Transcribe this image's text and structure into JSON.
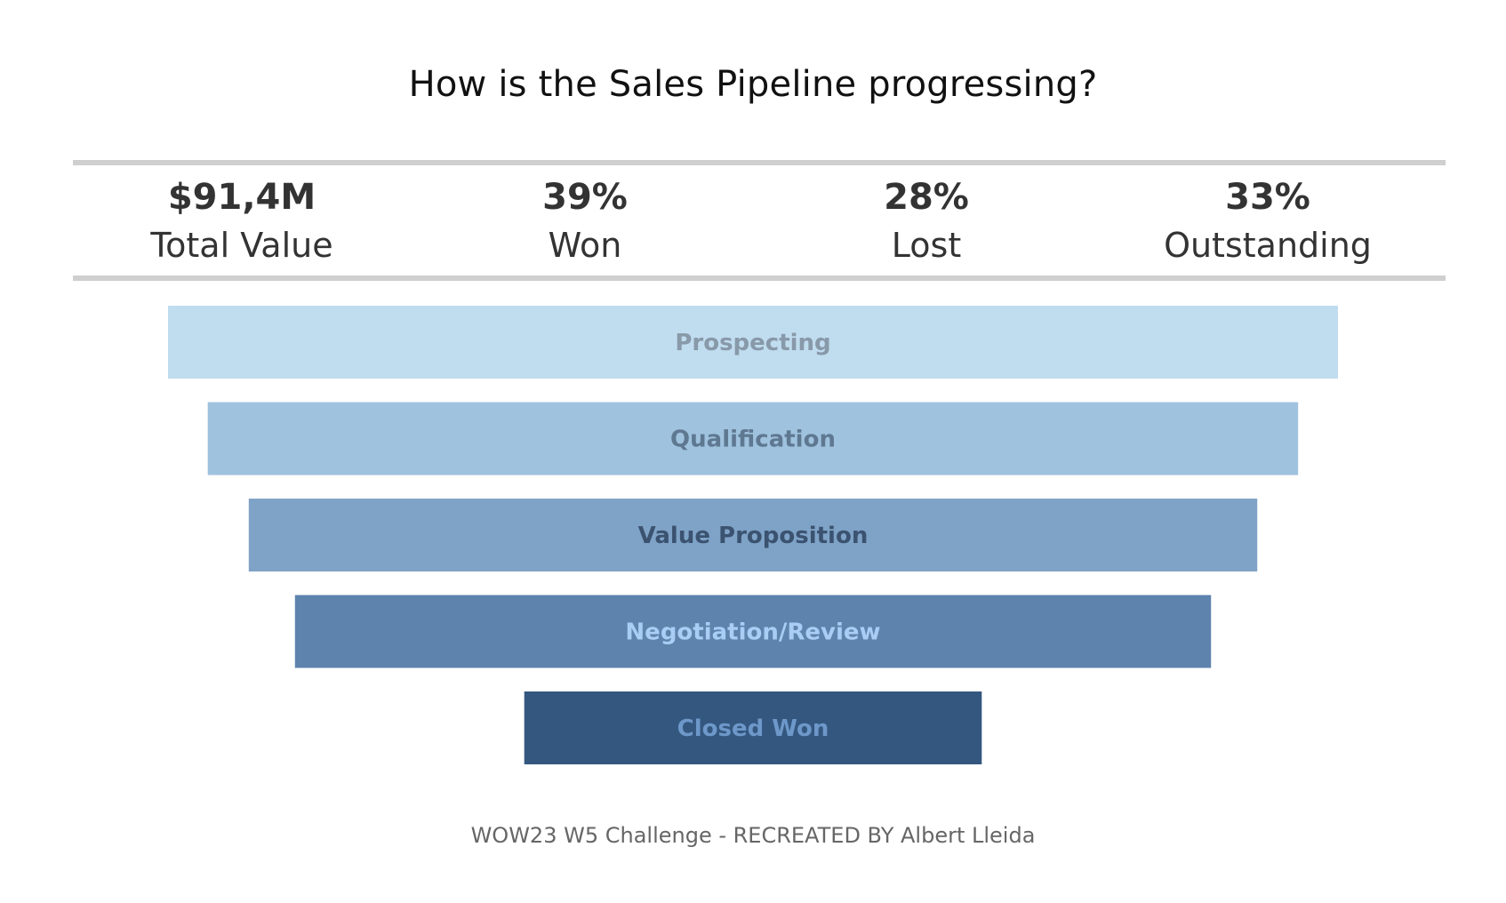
{
  "title": "How is the Sales Pipeline progressing?",
  "kpis": [
    {
      "value": "$91,4M",
      "label": "Total Value"
    },
    {
      "value": "39%",
      "label": "Won"
    },
    {
      "value": "28%",
      "label": "Lost"
    },
    {
      "value": "33%",
      "label": "Outstanding"
    }
  ],
  "chart_data": {
    "type": "bar",
    "subtype": "funnel",
    "title": "How is the Sales Pipeline progressing?",
    "categories": [
      "Prospecting",
      "Qualification",
      "Value Proposition",
      "Negotiation/Review",
      "Closed Won"
    ],
    "values": [
      100,
      93.2,
      86.2,
      78.3,
      39.1
    ],
    "value_unit": "% of Prospecting width (relative pipeline value)",
    "colors": [
      "#c0dcef",
      "#9fc2de",
      "#7fa3c7",
      "#5e83ad",
      "#34577f"
    ],
    "label_colors": [
      "#8899a9",
      "#5f7891",
      "#3b5370",
      "#a9cdf4",
      "#6d98c9"
    ],
    "xlabel": "",
    "ylabel": "",
    "legend": "none",
    "grid": false
  },
  "footer": "WOW23 W5 Challenge - RECREATED BY Albert Lleida"
}
